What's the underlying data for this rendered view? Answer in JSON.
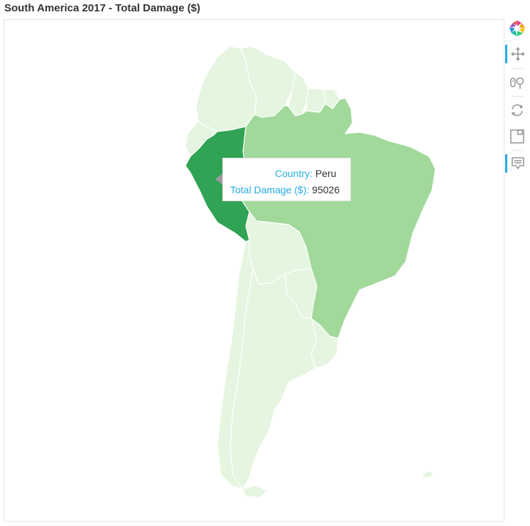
{
  "title": "South America 2017 - Total Damage ($)",
  "map": {
    "colors": {
      "high": "#31a354",
      "mid": "#a1d99b",
      "low": "#e5f5e0",
      "border": "#ffffff"
    },
    "regions": [
      {
        "name": "Peru",
        "value": 95026,
        "color": "#31a354"
      },
      {
        "name": "Brazil",
        "color": "#a1d99b"
      },
      {
        "name": "Colombia",
        "color": "#e5f5e0"
      },
      {
        "name": "Venezuela",
        "color": "#e5f5e0"
      },
      {
        "name": "Guyana",
        "color": "#e5f5e0"
      },
      {
        "name": "Suriname",
        "color": "#e5f5e0"
      },
      {
        "name": "French Guiana",
        "color": "#e5f5e0"
      },
      {
        "name": "Ecuador",
        "color": "#e5f5e0"
      },
      {
        "name": "Bolivia",
        "color": "#e5f5e0"
      },
      {
        "name": "Paraguay",
        "color": "#e5f5e0"
      },
      {
        "name": "Chile",
        "color": "#e5f5e0"
      },
      {
        "name": "Argentina",
        "color": "#e5f5e0"
      },
      {
        "name": "Uruguay",
        "color": "#e5f5e0"
      }
    ]
  },
  "tooltip": {
    "country_label": "Country:",
    "country_value": "Peru",
    "damage_label": "Total Damage ($):",
    "damage_value": "95026"
  },
  "toolbar": {
    "tools": [
      {
        "name": "bokeh-logo",
        "icon": "bokeh-logo-icon"
      },
      {
        "name": "pan",
        "icon": "pan-icon",
        "active": true
      },
      {
        "name": "wheel-zoom",
        "icon": "wheel-zoom-icon"
      },
      {
        "name": "reset",
        "icon": "reset-icon"
      },
      {
        "name": "save",
        "icon": "save-icon"
      },
      {
        "name": "hover",
        "icon": "hover-icon",
        "active": true
      }
    ]
  }
}
